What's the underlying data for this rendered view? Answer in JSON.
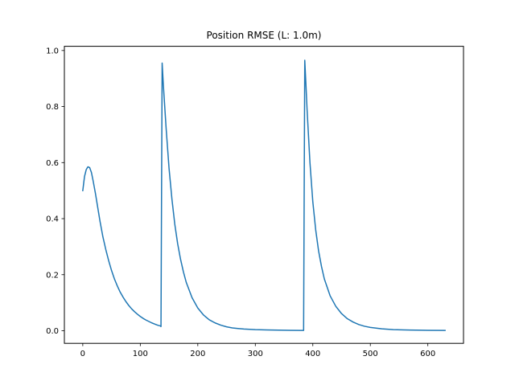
{
  "chart_data": {
    "type": "line",
    "title": "Position RMSE (L: 1.0m)",
    "xlabel": "",
    "ylabel": "",
    "xlim": [
      -32,
      662
    ],
    "ylim": [
      -0.045,
      1.015
    ],
    "x_ticks": [
      0,
      100,
      200,
      300,
      400,
      500,
      600
    ],
    "y_ticks": [
      0.0,
      0.2,
      0.4,
      0.6,
      0.8,
      1.0
    ],
    "x_tick_labels": [
      "0",
      "100",
      "200",
      "300",
      "400",
      "500",
      "600"
    ],
    "y_tick_labels": [
      "0.0",
      "0.2",
      "0.4",
      "0.6",
      "0.8",
      "1.0"
    ],
    "grid": false,
    "legend": false,
    "series": [
      {
        "color": "#1f77b4",
        "x": [
          0,
          3,
          6,
          9,
          12,
          15,
          18,
          22,
          26,
          30,
          35,
          40,
          45,
          50,
          55,
          60,
          65,
          70,
          75,
          80,
          85,
          90,
          95,
          100,
          105,
          110,
          115,
          120,
          125,
          130,
          135,
          136,
          137,
          138,
          140,
          145,
          150,
          155,
          160,
          165,
          170,
          175,
          180,
          190,
          200,
          210,
          220,
          230,
          240,
          250,
          260,
          270,
          280,
          290,
          300,
          320,
          340,
          360,
          380,
          384,
          385,
          386,
          388,
          390,
          395,
          400,
          405,
          410,
          415,
          420,
          430,
          440,
          450,
          460,
          470,
          480,
          490,
          500,
          520,
          540,
          560,
          580,
          600,
          630
        ],
        "y": [
          0.5,
          0.55,
          0.575,
          0.585,
          0.582,
          0.565,
          0.535,
          0.49,
          0.44,
          0.39,
          0.335,
          0.29,
          0.25,
          0.215,
          0.185,
          0.16,
          0.138,
          0.12,
          0.104,
          0.09,
          0.078,
          0.068,
          0.059,
          0.051,
          0.044,
          0.038,
          0.033,
          0.028,
          0.024,
          0.02,
          0.017,
          0.015,
          0.5,
          0.955,
          0.88,
          0.72,
          0.58,
          0.47,
          0.38,
          0.31,
          0.255,
          0.21,
          0.172,
          0.118,
          0.081,
          0.056,
          0.039,
          0.028,
          0.02,
          0.014,
          0.01,
          0.008,
          0.006,
          0.005,
          0.004,
          0.003,
          0.002,
          0.0015,
          0.001,
          0.001,
          0.5,
          0.965,
          0.88,
          0.79,
          0.6,
          0.46,
          0.36,
          0.285,
          0.23,
          0.185,
          0.125,
          0.087,
          0.061,
          0.043,
          0.031,
          0.022,
          0.016,
          0.012,
          0.007,
          0.004,
          0.003,
          0.002,
          0.0015,
          0.001
        ]
      }
    ]
  }
}
